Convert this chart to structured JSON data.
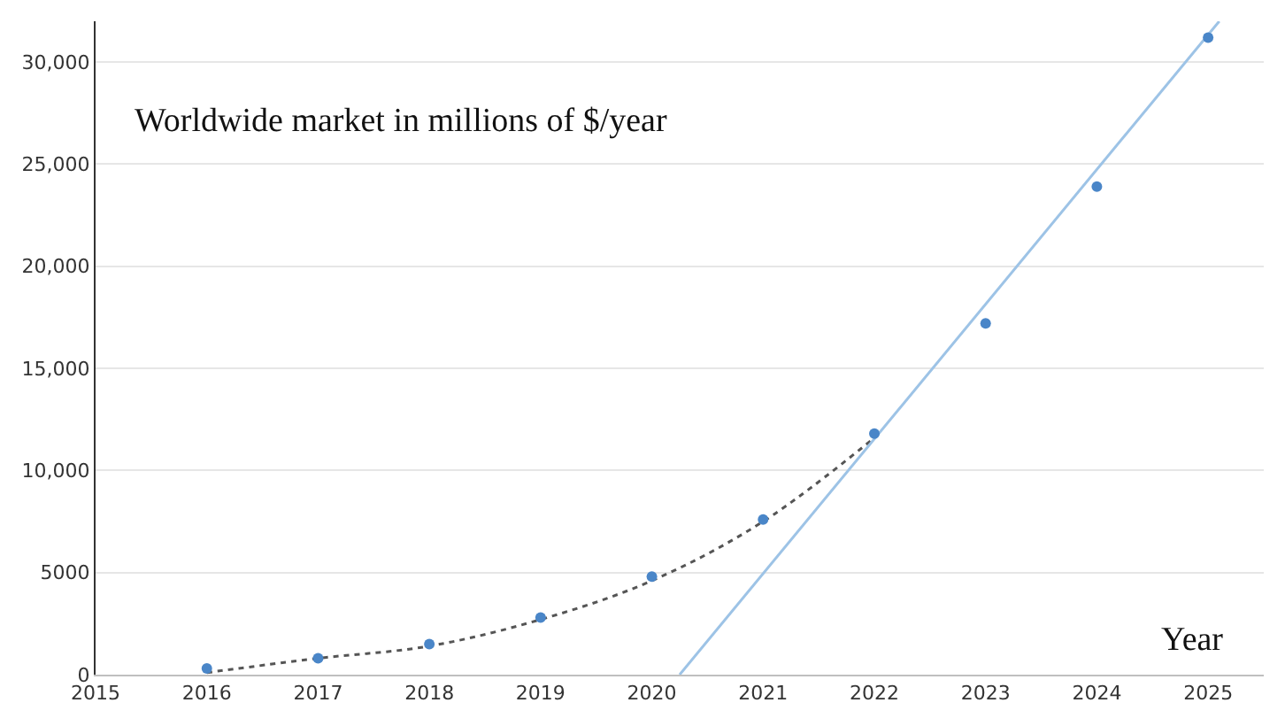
{
  "chart_data": {
    "type": "scatter",
    "ylabel": "Worldwide market in millions of $/year",
    "xlabel": "Year",
    "xlim": [
      2015,
      2025.5
    ],
    "xticks": [
      2015,
      2016,
      2017,
      2018,
      2019,
      2020,
      2021,
      2022,
      2023,
      2024,
      2025
    ],
    "ylim": [
      0,
      32000
    ],
    "yticks": [
      {
        "value": 0,
        "label": "0"
      },
      {
        "value": 5000,
        "label": "5000"
      },
      {
        "value": 10000,
        "label": "10,000"
      },
      {
        "value": 15000,
        "label": "15,000"
      },
      {
        "value": 20000,
        "label": "20,000"
      },
      {
        "value": 25000,
        "label": "25,000"
      },
      {
        "value": 30000,
        "label": "30,000"
      }
    ],
    "grid": "y",
    "series": [
      {
        "type": "line",
        "color": "#555555",
        "line_style": "dotted",
        "marker": "none",
        "x": [
          2016,
          2017,
          2018,
          2019,
          2020,
          2021,
          2022
        ],
        "values": [
          100,
          800,
          1400,
          2700,
          4600,
          7500,
          11600
        ]
      },
      {
        "type": "line",
        "color": "#9dc3e6",
        "line_style": "solid",
        "marker": "none",
        "x": [
          2020.25,
          2025.1
        ],
        "values": [
          0,
          32000
        ]
      },
      {
        "color": "#4a86c8",
        "marker": "circle",
        "x": [
          2016,
          2017,
          2018,
          2019,
          2020,
          2021,
          2022,
          2023,
          2024,
          2025
        ],
        "values": [
          300,
          800,
          1500,
          2800,
          4800,
          7600,
          11800,
          17200,
          23900,
          31200
        ]
      }
    ]
  }
}
